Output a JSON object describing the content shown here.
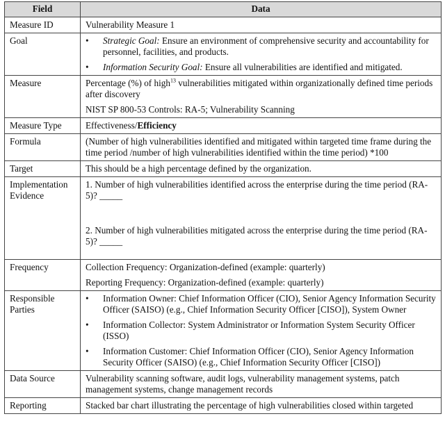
{
  "header": {
    "field": "Field",
    "data": "Data"
  },
  "rows": {
    "measure_id": {
      "field": "Measure ID",
      "value": "Vulnerability Measure 1"
    },
    "goal": {
      "field": "Goal",
      "items": [
        {
          "label": "Strategic Goal:",
          "text": " Ensure an environment of comprehensive security and accountability for personnel, facilities, and products."
        },
        {
          "label": "Information Security Goal:",
          "text": " Ensure all vulnerabilities are identified and mitigated."
        }
      ]
    },
    "measure": {
      "field": "Measure",
      "text_a": "Percentage (%) of high",
      "footnote": "13",
      "text_b": " vulnerabilities mitigated within organizationally defined time periods after discovery",
      "controls": "NIST SP 800-53 Controls:  RA-5; Vulnerability Scanning"
    },
    "measure_type": {
      "field": "Measure Type",
      "plain": "Effectiveness/",
      "bold": "Efficiency"
    },
    "formula": {
      "field": "Formula",
      "value": "(Number of high vulnerabilities identified and mitigated within targeted time frame during the time period /number of high vulnerabilities identified within the time period) *100"
    },
    "target": {
      "field": "Target",
      "value": "This should be a high percentage defined by the organization."
    },
    "implementation_evidence": {
      "field": "Implementation Evidence",
      "q1": "1. Number of high vulnerabilities identified across the enterprise during the time period (RA-5)? _____",
      "q2": "2. Number of high vulnerabilities mitigated across the enterprise during the time period (RA-5)? _____"
    },
    "frequency": {
      "field": "Frequency",
      "collection": "Collection Frequency: Organization-defined (example: quarterly)",
      "reporting": "Reporting Frequency: Organization-defined (example: quarterly)"
    },
    "responsible_parties": {
      "field": "Responsible Parties",
      "items": [
        "Information Owner: Chief Information Officer (CIO), Senior Agency Information Security Officer (SAISO) (e.g., Chief Information Security Officer [CISO]),  System Owner",
        "Information Collector: System Administrator or Information System Security Officer (ISSO)",
        "Information Customer: Chief Information Officer (CIO), Senior Agency Information Security Officer (SAISO) (e.g., Chief Information Security Officer [CISO])"
      ]
    },
    "data_source": {
      "field": "Data Source",
      "value": "Vulnerability scanning software, audit logs, vulnerability management systems, patch management systems, change management records"
    },
    "reporting": {
      "field": "Reporting",
      "value": "Stacked bar chart illustrating the percentage of high vulnerabilities closed within targeted"
    }
  }
}
